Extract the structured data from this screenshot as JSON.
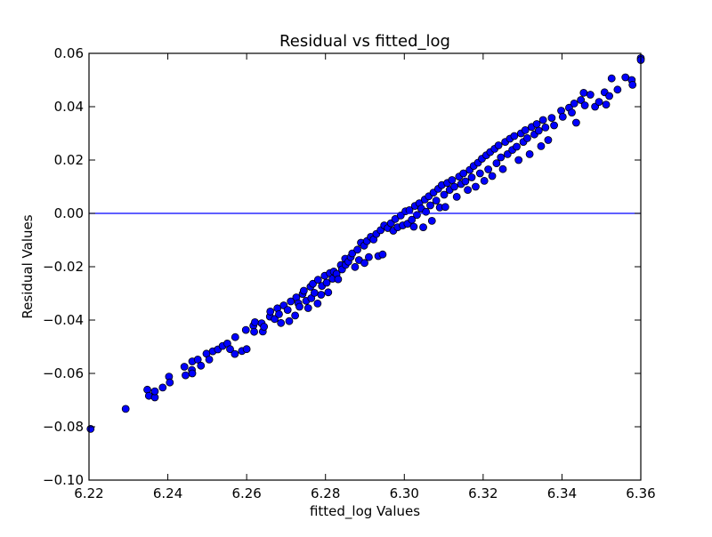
{
  "chart_data": {
    "type": "scatter",
    "title": "Residual vs fitted_log",
    "xlabel": "fitted_log Values",
    "ylabel": "Residual Values",
    "xlim": [
      6.22,
      6.36
    ],
    "ylim": [
      -0.1,
      0.06
    ],
    "x_ticks": [
      "6.22",
      "6.24",
      "6.26",
      "6.28",
      "6.30",
      "6.32",
      "6.34",
      "6.36"
    ],
    "y_ticks": [
      "0.06",
      "0.04",
      "0.02",
      "0.00",
      "−0.02",
      "−0.04",
      "−0.06",
      "−0.08",
      "−0.10"
    ],
    "x_tick_values": [
      6.22,
      6.24,
      6.26,
      6.28,
      6.3,
      6.32,
      6.34,
      6.36
    ],
    "y_tick_values": [
      0.06,
      0.04,
      0.02,
      0.0,
      -0.02,
      -0.04,
      -0.06,
      -0.08,
      -0.1
    ],
    "reference_line": {
      "y": 0.0,
      "color": "#0000ff"
    },
    "marker_color": "#0000ff",
    "marker_edge_color": "#000000",
    "grid": false,
    "series": [
      {
        "points": [
          [
            6.2204,
            -0.0808
          ],
          [
            6.2293,
            -0.0733
          ],
          [
            6.2348,
            -0.0661
          ],
          [
            6.2352,
            -0.0684
          ],
          [
            6.2367,
            -0.069
          ],
          [
            6.2367,
            -0.0667
          ],
          [
            6.2387,
            -0.0653
          ],
          [
            6.2403,
            -0.0612
          ],
          [
            6.2405,
            -0.0634
          ],
          [
            6.2442,
            -0.0575
          ],
          [
            6.2445,
            -0.0607
          ],
          [
            6.2461,
            -0.0587
          ],
          [
            6.2462,
            -0.0555
          ],
          [
            6.2462,
            -0.06
          ],
          [
            6.2476,
            -0.0548
          ],
          [
            6.2484,
            -0.0571
          ],
          [
            6.2498,
            -0.0526
          ],
          [
            6.2505,
            -0.0548
          ],
          [
            6.2514,
            -0.0517
          ],
          [
            6.2527,
            -0.051
          ],
          [
            6.2539,
            -0.0497
          ],
          [
            6.2551,
            -0.0488
          ],
          [
            6.2558,
            -0.0509
          ],
          [
            6.257,
            -0.0527
          ],
          [
            6.2571,
            -0.0464
          ],
          [
            6.2588,
            -0.0516
          ],
          [
            6.2598,
            -0.0437
          ],
          [
            6.26,
            -0.0509
          ],
          [
            6.2617,
            -0.0421
          ],
          [
            6.2619,
            -0.0444
          ],
          [
            6.2621,
            -0.0408
          ],
          [
            6.2638,
            -0.0412
          ],
          [
            6.2641,
            -0.0443
          ],
          [
            6.2644,
            -0.0425
          ],
          [
            6.2659,
            -0.0387
          ],
          [
            6.266,
            -0.0368
          ],
          [
            6.2671,
            -0.0396
          ],
          [
            6.2678,
            -0.0356
          ],
          [
            6.2682,
            -0.0378
          ],
          [
            6.2687,
            -0.0411
          ],
          [
            6.2694,
            -0.0345
          ],
          [
            6.2704,
            -0.0362
          ],
          [
            6.2708,
            -0.0404
          ],
          [
            6.2712,
            -0.033
          ],
          [
            6.2723,
            -0.0383
          ],
          [
            6.2726,
            -0.0315
          ],
          [
            6.2731,
            -0.0337
          ],
          [
            6.2734,
            -0.035
          ],
          [
            6.2742,
            -0.0302
          ],
          [
            6.2745,
            -0.029
          ],
          [
            6.2751,
            -0.0328
          ],
          [
            6.2756,
            -0.0355
          ],
          [
            6.2762,
            -0.0275
          ],
          [
            6.2764,
            -0.0318
          ],
          [
            6.2768,
            -0.0264
          ],
          [
            6.2772,
            -0.0298
          ],
          [
            6.278,
            -0.0338
          ],
          [
            6.2781,
            -0.0249
          ],
          [
            6.2789,
            -0.0305
          ],
          [
            6.2791,
            -0.0272
          ],
          [
            6.2798,
            -0.0234
          ],
          [
            6.2803,
            -0.026
          ],
          [
            6.2807,
            -0.0296
          ],
          [
            6.2811,
            -0.0224
          ],
          [
            6.2818,
            -0.0245
          ],
          [
            6.2821,
            -0.0218
          ],
          [
            6.2828,
            -0.0227
          ],
          [
            6.2832,
            -0.0247
          ],
          [
            6.2839,
            -0.0194
          ],
          [
            6.2842,
            -0.021
          ],
          [
            6.285,
            -0.017
          ],
          [
            6.2851,
            -0.0193
          ],
          [
            6.2858,
            -0.0181
          ],
          [
            6.2864,
            -0.0164
          ],
          [
            6.2868,
            -0.015
          ],
          [
            6.2875,
            -0.0201
          ],
          [
            6.2881,
            -0.0136
          ],
          [
            6.2885,
            -0.0175
          ],
          [
            6.289,
            -0.011
          ],
          [
            6.2898,
            -0.0121
          ],
          [
            6.2899,
            -0.0186
          ],
          [
            6.2905,
            -0.0104
          ],
          [
            6.291,
            -0.0164
          ],
          [
            6.2915,
            -0.0088
          ],
          [
            6.2922,
            -0.0098
          ],
          [
            6.2929,
            -0.0077
          ],
          [
            6.2934,
            -0.016
          ],
          [
            6.294,
            -0.0063
          ],
          [
            6.2945,
            -0.0154
          ],
          [
            6.2949,
            -0.0045
          ],
          [
            6.2958,
            -0.0055
          ],
          [
            6.2966,
            -0.0037
          ],
          [
            6.2972,
            -0.0065
          ],
          [
            6.2977,
            -0.0021
          ],
          [
            6.2983,
            -0.0052
          ],
          [
            6.2991,
            -0.0008
          ],
          [
            6.2996,
            -0.0045
          ],
          [
            6.3003,
            0.0008
          ],
          [
            6.3008,
            -0.0039
          ],
          [
            6.3013,
            0.0012
          ],
          [
            6.3019,
            -0.0024
          ],
          [
            6.3024,
            -0.005
          ],
          [
            6.3027,
            0.0028
          ],
          [
            6.3032,
            -0.0006
          ],
          [
            6.3038,
            0.0038
          ],
          [
            6.3043,
            0.0018
          ],
          [
            6.3048,
            -0.0052
          ],
          [
            6.3052,
            0.0052
          ],
          [
            6.3055,
            0.0006
          ],
          [
            6.3062,
            0.0064
          ],
          [
            6.3066,
            0.003
          ],
          [
            6.307,
            -0.0028
          ],
          [
            6.3074,
            0.0078
          ],
          [
            6.3081,
            0.0048
          ],
          [
            6.3086,
            0.0092
          ],
          [
            6.309,
            0.0022
          ],
          [
            6.3095,
            0.0106
          ],
          [
            6.3101,
            0.007
          ],
          [
            6.3104,
            0.0024
          ],
          [
            6.3109,
            0.0114
          ],
          [
            6.3115,
            0.0088
          ],
          [
            6.3121,
            0.0125
          ],
          [
            6.3127,
            0.01
          ],
          [
            6.3133,
            0.0062
          ],
          [
            6.3139,
            0.0138
          ],
          [
            6.3144,
            0.011
          ],
          [
            6.315,
            0.015
          ],
          [
            6.3155,
            0.012
          ],
          [
            6.3161,
            0.0088
          ],
          [
            6.3166,
            0.0163
          ],
          [
            6.3171,
            0.0135
          ],
          [
            6.3176,
            0.0178
          ],
          [
            6.3181,
            0.01
          ],
          [
            6.3187,
            0.019
          ],
          [
            6.3192,
            0.015
          ],
          [
            6.3197,
            0.0205
          ],
          [
            6.3203,
            0.0122
          ],
          [
            6.3208,
            0.0218
          ],
          [
            6.3213,
            0.0165
          ],
          [
            6.3218,
            0.023
          ],
          [
            6.3223,
            0.014
          ],
          [
            6.3229,
            0.0242
          ],
          [
            6.3234,
            0.0188
          ],
          [
            6.3239,
            0.0255
          ],
          [
            6.3245,
            0.021
          ],
          [
            6.325,
            0.0166
          ],
          [
            6.3256,
            0.0268
          ],
          [
            6.3262,
            0.0222
          ],
          [
            6.3268,
            0.028
          ],
          [
            6.3274,
            0.0238
          ],
          [
            6.3279,
            0.029
          ],
          [
            6.3285,
            0.025
          ],
          [
            6.329,
            0.02
          ],
          [
            6.3296,
            0.03
          ],
          [
            6.3302,
            0.0268
          ],
          [
            6.3307,
            0.0312
          ],
          [
            6.3312,
            0.0282
          ],
          [
            6.3318,
            0.0222
          ],
          [
            6.3323,
            0.0324
          ],
          [
            6.333,
            0.0296
          ],
          [
            6.3336,
            0.0335
          ],
          [
            6.3341,
            0.031
          ],
          [
            6.3347,
            0.0252
          ],
          [
            6.3352,
            0.035
          ],
          [
            6.3358,
            0.0322
          ],
          [
            6.3365,
            0.0275
          ],
          [
            6.3374,
            0.0358
          ],
          [
            6.338,
            0.033
          ],
          [
            6.3398,
            0.0385
          ],
          [
            6.3402,
            0.0362
          ],
          [
            6.3418,
            0.0396
          ],
          [
            6.3425,
            0.0378
          ],
          [
            6.3431,
            0.0412
          ],
          [
            6.3436,
            0.034
          ],
          [
            6.3448,
            0.0425
          ],
          [
            6.3455,
            0.0452
          ],
          [
            6.3458,
            0.0405
          ],
          [
            6.3472,
            0.0445
          ],
          [
            6.3484,
            0.04
          ],
          [
            6.3494,
            0.0418
          ],
          [
            6.3508,
            0.0454
          ],
          [
            6.3512,
            0.0408
          ],
          [
            6.352,
            0.044
          ],
          [
            6.3526,
            0.0506
          ],
          [
            6.3541,
            0.0464
          ],
          [
            6.3561,
            0.051
          ],
          [
            6.3577,
            0.05
          ],
          [
            6.3579,
            0.0482
          ],
          [
            6.36,
            0.0582
          ],
          [
            6.36,
            0.0575
          ]
        ]
      }
    ]
  }
}
